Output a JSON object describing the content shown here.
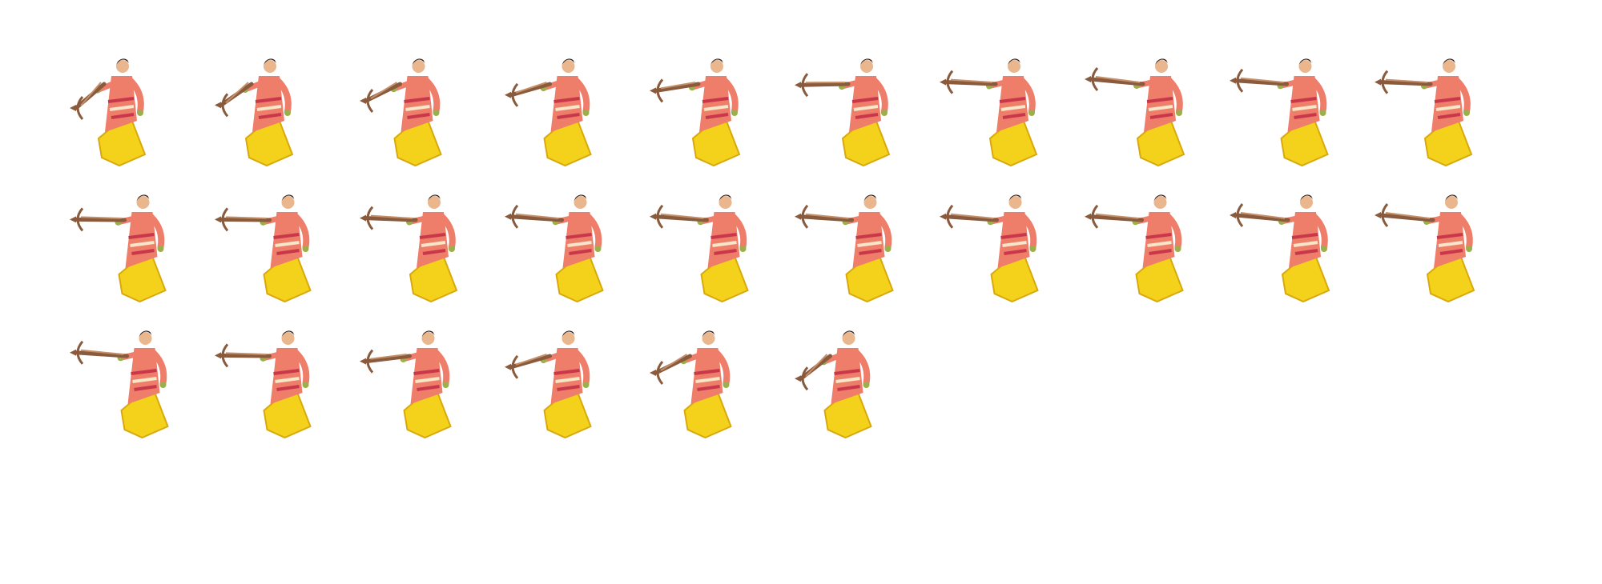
{
  "sprite_sheet": {
    "title": "",
    "background_color": "#ffffff",
    "rows": [
      10,
      10,
      6
    ],
    "frame_count": 26,
    "palette": {
      "skirt": "#f4d21c",
      "skirt_shade": "#d9a90c",
      "robe": "#ee7d6a",
      "robe_pattern": "#c9374a",
      "robe_stripe": "#f7e6c8",
      "skin": "#e9b68e",
      "hair": "#2b1a14",
      "crossbow": "#8a5a3c",
      "crossbow_light": "#c4906a",
      "cuff": "#9bb04a"
    },
    "frames": [
      {
        "aim": 0.0
      },
      {
        "aim": 0.1
      },
      {
        "aim": 0.25
      },
      {
        "aim": 0.45
      },
      {
        "aim": 0.6
      },
      {
        "aim": 0.8
      },
      {
        "aim": 0.9
      },
      {
        "aim": 1.0
      },
      {
        "aim": 0.95
      },
      {
        "aim": 0.9
      },
      {
        "aim": 0.85
      },
      {
        "aim": 0.85
      },
      {
        "aim": 0.9
      },
      {
        "aim": 0.95
      },
      {
        "aim": 0.95
      },
      {
        "aim": 0.95
      },
      {
        "aim": 0.95
      },
      {
        "aim": 0.95
      },
      {
        "aim": 1.0
      },
      {
        "aim": 1.0
      },
      {
        "aim": 0.95
      },
      {
        "aim": 0.85
      },
      {
        "aim": 0.65
      },
      {
        "aim": 0.45
      },
      {
        "aim": 0.25
      },
      {
        "aim": 0.05
      }
    ]
  }
}
